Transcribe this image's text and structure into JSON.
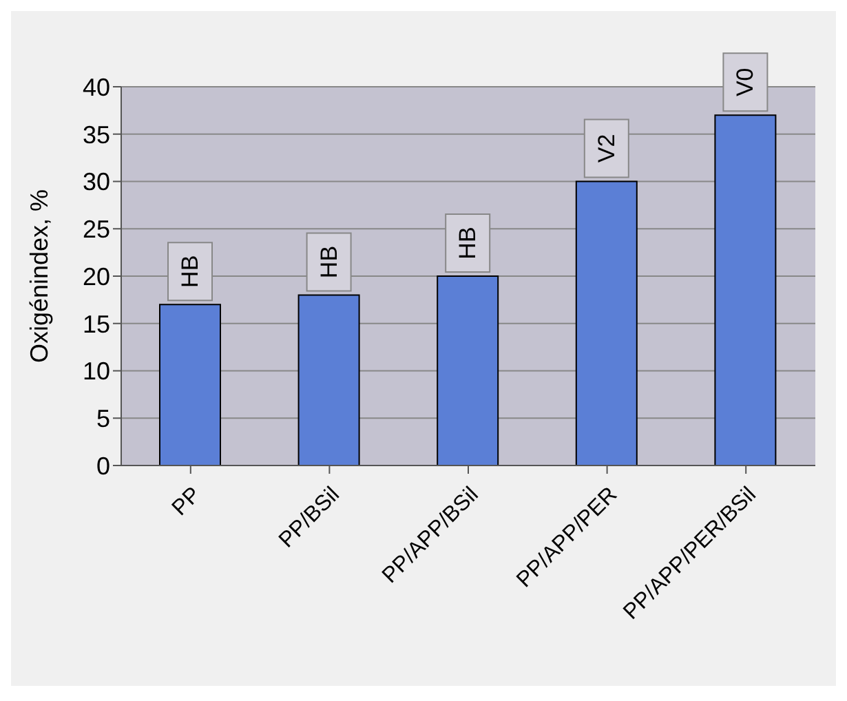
{
  "chart_data": {
    "type": "bar",
    "ylabel": "Oxigénindex, %",
    "categories": [
      "PP",
      "PP/BSil",
      "PP/APP/BSil",
      "PP/APP/PER",
      "PP/APP/PER/BSil"
    ],
    "values": [
      17,
      18,
      20,
      30,
      37
    ],
    "value_labels": [
      "HB",
      "HB",
      "HB",
      "V2",
      "V0"
    ],
    "color": "#5b7fd6",
    "ylim": [
      0,
      40
    ],
    "yticks": [
      0,
      5,
      10,
      15,
      20,
      25,
      30,
      35,
      40
    ],
    "grid": "y"
  }
}
